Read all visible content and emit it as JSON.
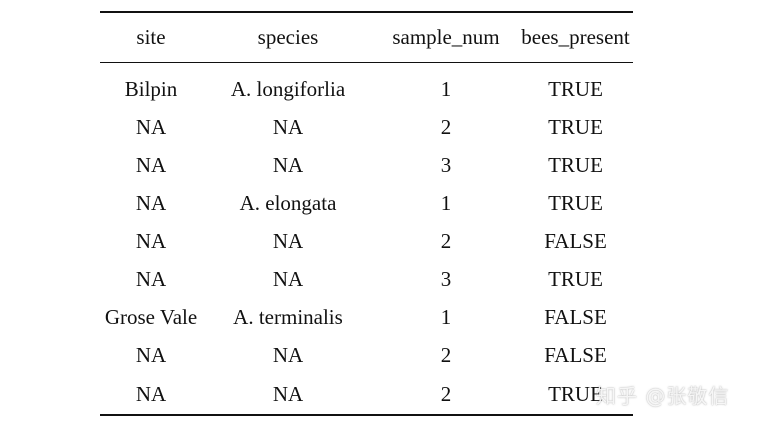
{
  "table": {
    "headers": [
      "site",
      "species",
      "sample_num",
      "bees_present"
    ],
    "rows": [
      [
        "Bilpin",
        "A. longiforlia",
        "1",
        "TRUE"
      ],
      [
        "NA",
        "NA",
        "2",
        "TRUE"
      ],
      [
        "NA",
        "NA",
        "3",
        "TRUE"
      ],
      [
        "NA",
        "A. elongata",
        "1",
        "TRUE"
      ],
      [
        "NA",
        "NA",
        "2",
        "FALSE"
      ],
      [
        "NA",
        "NA",
        "3",
        "TRUE"
      ],
      [
        "Grose Vale",
        "A. terminalis",
        "1",
        "FALSE"
      ],
      [
        "NA",
        "NA",
        "2",
        "FALSE"
      ],
      [
        "NA",
        "NA",
        "2",
        "TRUE"
      ]
    ]
  },
  "watermark": {
    "text": "知乎 @张敬信"
  }
}
